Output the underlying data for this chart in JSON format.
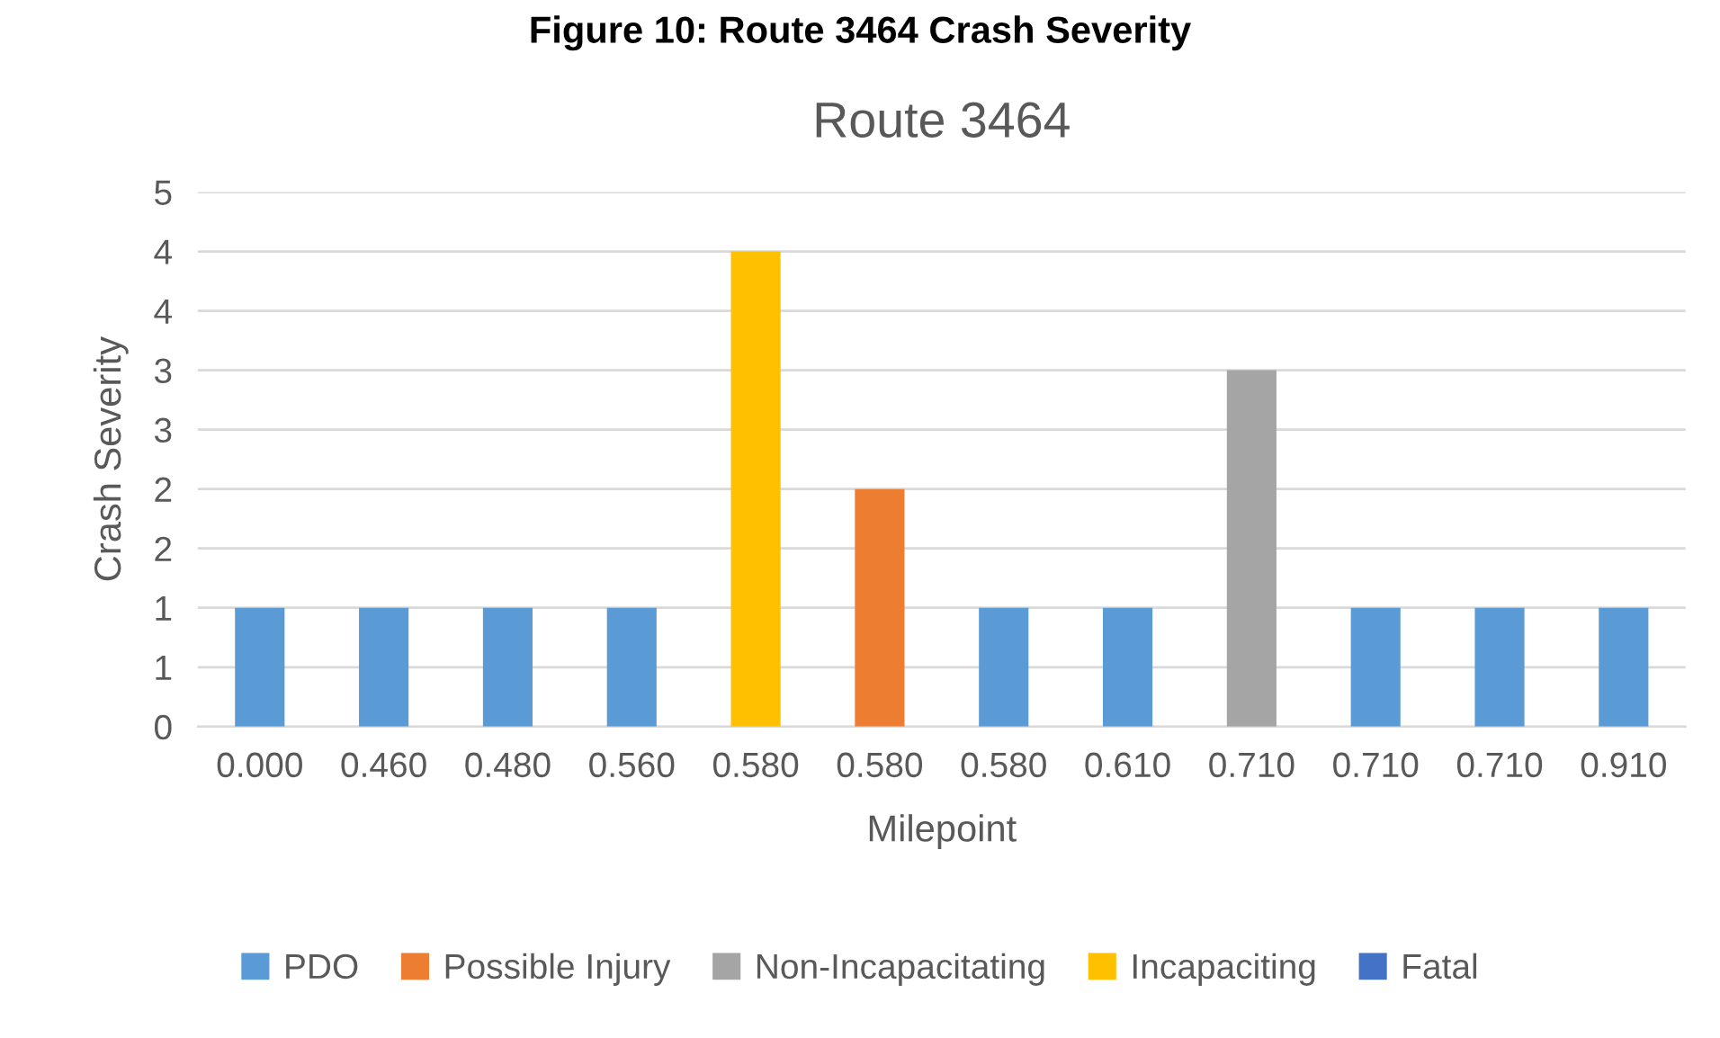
{
  "chart_data": {
    "type": "bar",
    "title": "Route 3464",
    "annotations": [
      "Figure 10: Route 3464 Crash Severity"
    ],
    "xlabel": "Milepoint",
    "ylabel": "Crash Severity",
    "categories": [
      "0.000",
      "0.460",
      "0.480",
      "0.560",
      "0.580",
      "0.580",
      "0.580",
      "0.610",
      "0.710",
      "0.710",
      "0.710",
      "0.910"
    ],
    "series": [
      {
        "name": "PDO",
        "color": "#5b9bd5",
        "values": [
          1,
          1,
          1,
          1,
          null,
          null,
          1,
          1,
          null,
          1,
          1,
          1
        ]
      },
      {
        "name": "Possible Injury",
        "color": "#ed7d31",
        "values": [
          null,
          null,
          null,
          null,
          null,
          2,
          null,
          null,
          null,
          null,
          null,
          null
        ]
      },
      {
        "name": "Non-Incapacitating",
        "color": "#a5a5a5",
        "values": [
          null,
          null,
          null,
          null,
          null,
          null,
          null,
          null,
          3,
          null,
          null,
          null
        ]
      },
      {
        "name": "Incapaciting",
        "color": "#ffc000",
        "values": [
          null,
          null,
          null,
          null,
          4,
          null,
          null,
          null,
          null,
          null,
          null,
          null
        ]
      },
      {
        "name": "Fatal",
        "color": "#4472c4",
        "values": [
          null,
          null,
          null,
          null,
          null,
          null,
          null,
          null,
          null,
          null,
          null,
          null
        ]
      }
    ],
    "ylim": [
      0,
      4.5
    ],
    "yticks": [
      0,
      {
        "value": 0.5,
        "label": "1"
      },
      1,
      {
        "value": 1.5,
        "label": "2"
      },
      2,
      {
        "value": 2.5,
        "label": "3"
      },
      3,
      {
        "value": 3.5,
        "label": "4"
      },
      4,
      {
        "value": 4.5,
        "label": "5"
      }
    ],
    "grid": "y",
    "legend": "bottom"
  }
}
